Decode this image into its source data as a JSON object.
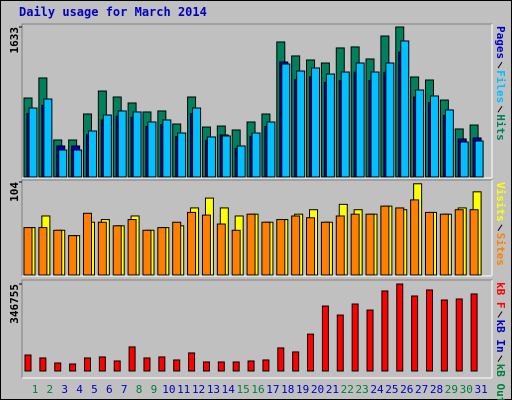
{
  "chart_data": [
    {
      "type": "bar",
      "title": "Daily usage for March 2014",
      "ylim": [
        0,
        1633
      ],
      "yticks": [
        1633
      ],
      "series": [
        {
          "name": "Pages",
          "color": "#0000c0",
          "values": [
            690,
            780,
            338,
            338,
            460,
            620,
            660,
            650,
            550,
            570,
            440,
            690,
            400,
            457,
            310,
            440,
            550,
            1252,
            1060,
            1090,
            1030,
            1050,
            1140,
            1050,
            1140,
            1360,
            870,
            810,
            670,
            414,
            425
          ]
        },
        {
          "name": "Files",
          "color": "#00c0ff",
          "values": [
            751,
            849,
            294,
            294,
            501,
            675,
            719,
            708,
            599,
            621,
            479,
            751,
            436,
            447,
            338,
            479,
            599,
            1230,
            1154,
            1187,
            1121,
            1143,
            1241,
            1143,
            1241,
            1481,
            947,
            882,
            730,
            381,
            392
          ]
        },
        {
          "name": "Hits",
          "color": "#00805c",
          "values": [
            860,
            1078,
            403,
            403,
            686,
            936,
            871,
            806,
            708,
            719,
            577,
            871,
            544,
            555,
            512,
            599,
            686,
            1470,
            1318,
            1274,
            1241,
            1405,
            1416,
            1285,
            1535,
            1633,
            1089,
            1056,
            838,
            523,
            566
          ]
        }
      ]
    },
    {
      "type": "bar",
      "ylim": [
        0,
        104
      ],
      "yticks": [
        104
      ],
      "series": [
        {
          "name": "Visits",
          "color": "#ffff00",
          "values": [
            53,
            66,
            50,
            44,
            59,
            62,
            55,
            66,
            50,
            53,
            55,
            75,
            86,
            75,
            66,
            68,
            59,
            62,
            68,
            73,
            59,
            79,
            73,
            68,
            77,
            73,
            102,
            70,
            68,
            75,
            93
          ]
        },
        {
          "name": "Sites",
          "color": "#ff8000",
          "values": [
            53,
            53,
            50,
            44,
            69,
            59,
            55,
            62,
            50,
            53,
            59,
            70,
            67,
            57,
            50,
            68,
            59,
            62,
            66,
            64,
            59,
            66,
            68,
            68,
            77,
            75,
            84,
            70,
            68,
            73,
            73
          ]
        }
      ]
    },
    {
      "type": "bar",
      "ylim": [
        0,
        346755
      ],
      "yticks": [
        346755
      ],
      "categories": [
        "1",
        "2",
        "3",
        "4",
        "5",
        "6",
        "7",
        "8",
        "9",
        "10",
        "11",
        "12",
        "13",
        "14",
        "15",
        "16",
        "17",
        "18",
        "19",
        "20",
        "21",
        "22",
        "23",
        "24",
        "25",
        "26",
        "27",
        "28",
        "29",
        "30",
        "31"
      ],
      "tick_label_colors": [
        "#008040",
        "#008040",
        "#0000c0",
        "#0000c0",
        "#0000c0",
        "#0000c0",
        "#0000c0",
        "#008040",
        "#008040",
        "#0000c0",
        "#0000c0",
        "#0000c0",
        "#0000c0",
        "#0000c0",
        "#008040",
        "#008040",
        "#0000c0",
        "#0000c0",
        "#0000c0",
        "#0000c0",
        "#0000c0",
        "#008040",
        "#008040",
        "#0000c0",
        "#0000c0",
        "#0000c0",
        "#0000c0",
        "#0000c0",
        "#008040",
        "#008040",
        "#0000c0"
      ],
      "series": [
        {
          "name": "kB F",
          "color": "#ff0000",
          "values": [
            63776,
            52000,
            32000,
            28000,
            52000,
            56000,
            40000,
            96000,
            52000,
            56000,
            44000,
            72000,
            36000,
            36000,
            36000,
            40000,
            44000,
            92000,
            76000,
            147000,
            259000,
            223000,
            267000,
            243000,
            319000,
            346755,
            299000,
            323000,
            283000,
            287000,
            307000
          ]
        },
        {
          "name": "kB In",
          "color": "#0000c0",
          "values": [
            0,
            0,
            0,
            0,
            0,
            0,
            0,
            0,
            0,
            0,
            0,
            0,
            0,
            0,
            0,
            0,
            0,
            0,
            0,
            0,
            0,
            0,
            0,
            0,
            0,
            0,
            0,
            0,
            0,
            0,
            0
          ]
        },
        {
          "name": "kB Out",
          "color": "#008040",
          "values": [
            0,
            0,
            0,
            0,
            0,
            0,
            0,
            0,
            0,
            0,
            0,
            0,
            0,
            0,
            0,
            0,
            0,
            0,
            0,
            0,
            0,
            0,
            0,
            0,
            0,
            0,
            0,
            0,
            0,
            0,
            0
          ]
        }
      ]
    }
  ]
}
